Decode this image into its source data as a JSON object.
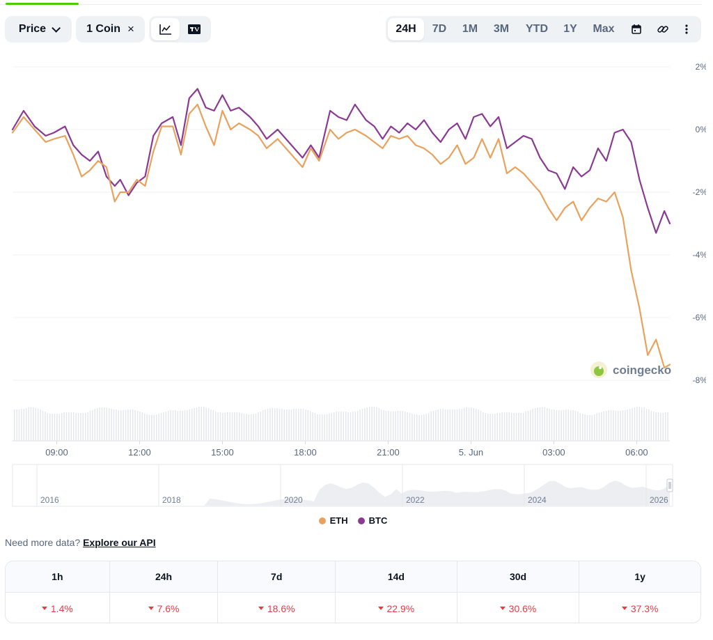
{
  "toolbar": {
    "price_label": "Price",
    "coin_label": "1 Coin",
    "close_glyph": "×",
    "chart_icons": [
      "line-chart-icon",
      "tradingview-icon"
    ],
    "ranges": [
      "24H",
      "7D",
      "1M",
      "3M",
      "YTD",
      "1Y",
      "Max"
    ],
    "active_range": "24H",
    "tool_icons": [
      "calendar-icon",
      "link-icon",
      "more-icon"
    ]
  },
  "watermark": "coingecko",
  "colors": {
    "eth": "#e8a25d",
    "btc": "#8b3a94",
    "negative": "#ea3943",
    "accent": "#4bcc00"
  },
  "chart_data": {
    "type": "line",
    "yticks": [
      "2%",
      "0%",
      "-2%",
      "-4%",
      "-6%",
      "-8%"
    ],
    "ylim": [
      -8,
      2
    ],
    "xticks": [
      "09:00",
      "12:00",
      "15:00",
      "18:00",
      "21:00",
      "5. Jun",
      "03:00",
      "06:00"
    ],
    "x_range_hours": [
      7.4,
      31.2
    ],
    "legend": [
      "ETH",
      "BTC"
    ],
    "navigator_ticks": [
      "2016",
      "2018",
      "2020",
      "2022",
      "2024",
      "2026"
    ],
    "series": [
      {
        "name": "BTC",
        "x": [
          7.4,
          7.8,
          8.2,
          8.6,
          8.9,
          9.3,
          9.6,
          9.9,
          10.2,
          10.5,
          10.8,
          11.1,
          11.3,
          11.6,
          11.9,
          12.2,
          12.5,
          12.8,
          13.2,
          13.5,
          13.8,
          14.1,
          14.4,
          14.7,
          15.0,
          15.3,
          15.6,
          16.0,
          16.3,
          16.6,
          17.0,
          17.3,
          17.6,
          17.9,
          18.2,
          18.5,
          18.9,
          19.2,
          19.5,
          19.8,
          20.2,
          20.5,
          20.8,
          21.1,
          21.4,
          21.7,
          22.0,
          22.3,
          22.6,
          22.9,
          23.2,
          23.5,
          23.8,
          24.1,
          24.4,
          24.7,
          25.0,
          25.3,
          25.6,
          25.9,
          26.2,
          26.5,
          26.8,
          27.1,
          27.4,
          27.7,
          28.0,
          28.3,
          28.6,
          28.9,
          29.2,
          29.5,
          29.8,
          30.1,
          30.4,
          30.7,
          31.0,
          31.2
        ],
        "values": [
          0.0,
          0.6,
          0.1,
          -0.2,
          -0.1,
          0.1,
          -0.5,
          -0.8,
          -1.0,
          -0.7,
          -1.5,
          -1.8,
          -1.6,
          -2.1,
          -1.7,
          -1.5,
          -0.2,
          0.2,
          0.4,
          -0.5,
          1.0,
          1.3,
          0.7,
          0.6,
          1.1,
          0.6,
          0.7,
          0.4,
          0.1,
          -0.3,
          0.0,
          -0.3,
          -0.6,
          -0.9,
          -0.5,
          -0.9,
          0.6,
          0.4,
          0.3,
          0.8,
          0.3,
          0.1,
          -0.3,
          0.1,
          -0.1,
          0.2,
          0.0,
          0.3,
          -0.1,
          -0.4,
          0.0,
          0.2,
          -0.3,
          0.4,
          0.5,
          0.1,
          0.4,
          -0.6,
          -0.4,
          -0.2,
          -0.3,
          -0.9,
          -1.3,
          -1.4,
          -1.9,
          -1.2,
          -1.5,
          -1.3,
          -0.6,
          -1.0,
          -0.1,
          0.0,
          -0.4,
          -1.6,
          -2.5,
          -3.3,
          -2.6,
          -3.0
        ]
      },
      {
        "name": "ETH",
        "x": [
          7.4,
          7.8,
          8.2,
          8.6,
          8.9,
          9.3,
          9.6,
          9.9,
          10.2,
          10.5,
          10.8,
          11.1,
          11.3,
          11.6,
          11.9,
          12.2,
          12.5,
          12.8,
          13.2,
          13.5,
          13.8,
          14.1,
          14.4,
          14.7,
          15.0,
          15.3,
          15.6,
          16.0,
          16.3,
          16.6,
          17.0,
          17.3,
          17.6,
          17.9,
          18.2,
          18.5,
          18.9,
          19.2,
          19.5,
          19.8,
          20.2,
          20.5,
          20.8,
          21.1,
          21.4,
          21.7,
          22.0,
          22.3,
          22.6,
          22.9,
          23.2,
          23.5,
          23.8,
          24.1,
          24.4,
          24.7,
          25.0,
          25.3,
          25.6,
          25.9,
          26.2,
          26.5,
          26.8,
          27.1,
          27.4,
          27.7,
          28.0,
          28.3,
          28.6,
          28.9,
          29.2,
          29.5,
          29.8,
          30.1,
          30.4,
          30.7,
          31.0,
          31.2
        ],
        "values": [
          -0.1,
          0.4,
          0.0,
          -0.4,
          -0.3,
          -0.2,
          -0.8,
          -1.5,
          -1.3,
          -1.0,
          -1.2,
          -2.3,
          -2.0,
          -2.0,
          -1.6,
          -1.8,
          -0.7,
          0.1,
          0.1,
          -0.8,
          0.5,
          0.8,
          0.1,
          -0.5,
          0.6,
          0.0,
          0.2,
          0.0,
          -0.2,
          -0.6,
          -0.3,
          -0.6,
          -0.9,
          -1.2,
          -0.6,
          -1.0,
          0.0,
          -0.3,
          -0.1,
          0.0,
          -0.2,
          -0.4,
          -0.6,
          -0.2,
          -0.3,
          -0.2,
          -0.5,
          -0.6,
          -0.8,
          -1.1,
          -0.9,
          -0.5,
          -1.1,
          -0.9,
          -0.3,
          -0.9,
          -0.3,
          -1.4,
          -1.2,
          -1.4,
          -1.7,
          -2.0,
          -2.5,
          -2.9,
          -2.5,
          -2.3,
          -2.9,
          -2.5,
          -2.2,
          -2.3,
          -2.0,
          -2.8,
          -4.5,
          -5.7,
          -7.2,
          -6.7,
          -7.6,
          -7.5
        ]
      }
    ]
  },
  "api_note": {
    "prefix": "Need more data?",
    "link": "Explore our API"
  },
  "performance": {
    "headers": [
      "1h",
      "24h",
      "7d",
      "14d",
      "30d",
      "1y"
    ],
    "values": [
      "1.4%",
      "7.6%",
      "18.6%",
      "22.9%",
      "30.6%",
      "37.3%"
    ]
  }
}
